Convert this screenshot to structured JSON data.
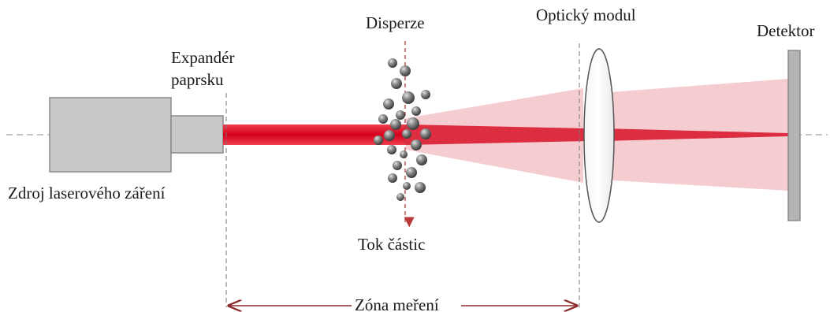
{
  "labels": {
    "source": "Zdroj laserového záření",
    "expander": "Expandér",
    "expander_line2": "paprsku",
    "dispersion": "Disperze",
    "optical_module": "Optický modul",
    "detector": "Detektor",
    "particle_flow": "Tok částic",
    "measurement_zone": "Zóna meření"
  },
  "colors": {
    "laser_body": "#c8c8c8",
    "laser_border": "#8a8a8a",
    "beam": "#e0102a",
    "scatter_cone": "#f2c4c8",
    "particle": "#707070",
    "detector": "#b4b4b4",
    "zone_arrow": "#8b2a2a",
    "dashed": "#777777"
  },
  "icons": {
    "particle": "sphere-icon",
    "lens": "convex-lens-icon"
  }
}
